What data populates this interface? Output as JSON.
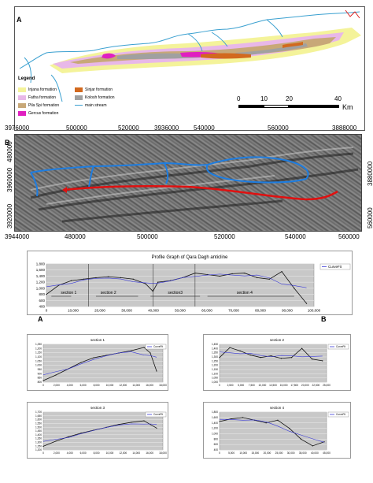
{
  "figure": {
    "panel_a_label": "A",
    "panel_b_label": "B",
    "legend_title": "Legend",
    "legend_items": [
      {
        "label": "Injana formation",
        "color": "#f4f39a"
      },
      {
        "label": "Fatha formation",
        "color": "#e8b8e8"
      },
      {
        "label": "Pila Spi formation",
        "color": "#c8a878"
      },
      {
        "label": "Gercus formation",
        "color": "#e020c0"
      },
      {
        "label": "Sinjar formation",
        "color": "#d2691e"
      },
      {
        "label": "Kolosh formation",
        "color": "#a0a0a0"
      },
      {
        "label": "main stream",
        "color": "#3aa0d0"
      }
    ],
    "scale_bar": {
      "ticks": [
        "0",
        "10",
        "20",
        "40"
      ],
      "unit": "Km"
    },
    "coords_top": [
      "3976000",
      "500000",
      "520000",
      "3936000",
      "540000",
      "560000",
      "3888000"
    ],
    "coords_bottom": [
      "3944000",
      "480000",
      "500000",
      "520000",
      "540000",
      "560000"
    ],
    "coords_left": [
      "3960000",
      "480000",
      "3920000"
    ],
    "coords_right": [
      "3880000",
      "560000"
    ],
    "profile": {
      "title": "Profile Graph of Qara Dagh  anticline",
      "legend": "CurveFit",
      "start_label": "A",
      "end_label": "B",
      "sections": [
        "section 1",
        "section 2",
        "section3",
        "section 4"
      ]
    },
    "small_charts": [
      {
        "title": "section 1",
        "legend": "CurveFit"
      },
      {
        "title": "section 2",
        "legend": "CurveFit"
      },
      {
        "title": "section 3",
        "legend": "CurveFit"
      },
      {
        "title": "section 4",
        "legend": "CurveFit"
      }
    ]
  },
  "chart_data": [
    {
      "type": "line",
      "title": "Profile Graph of Qara Dagh  anticline",
      "series": [
        {
          "name": "CurveFit"
        }
      ],
      "x": [
        0,
        5000,
        10000,
        15000,
        20000,
        25000,
        30000,
        35000,
        40000,
        43000,
        45000,
        50000,
        55000,
        60000,
        65000,
        70000,
        75000,
        80000,
        85000,
        90000,
        95000,
        100000,
        105000
      ],
      "y": [
        800,
        1100,
        1250,
        1300,
        1350,
        1380,
        1350,
        1300,
        1150,
        900,
        1200,
        1250,
        1350,
        1500,
        1450,
        1400,
        1480,
        1500,
        1350,
        1300,
        1550,
        1000,
        500
      ],
      "xticks": [
        "0",
        "10,000",
        "20,000",
        "30,000",
        "40,000",
        "50,000",
        "60,000",
        "70,000",
        "80,000",
        "90,000",
        "100,000"
      ],
      "yticks": [
        "1,800",
        "1,600",
        "1,400",
        "1,200",
        "1,000",
        "800",
        "600",
        "400"
      ],
      "xlim": [
        0,
        108000
      ],
      "ylim": [
        400,
        1800
      ],
      "grid": true,
      "legend_position": "top-right"
    },
    {
      "type": "line",
      "title": "section 1",
      "series": [
        {
          "name": "CurveFit"
        }
      ],
      "x": [
        0,
        2000,
        4000,
        6000,
        8000,
        10000,
        12000,
        14000,
        16000,
        17000,
        18000
      ],
      "y": [
        800,
        870,
        950,
        1030,
        1090,
        1120,
        1150,
        1180,
        1220,
        1150,
        920
      ],
      "xticks": [
        "0",
        "2,000",
        "4,000",
        "6,000",
        "8,000",
        "10,000",
        "12,000",
        "14,000",
        "16,000",
        "18,000"
      ],
      "yticks": [
        "1,250",
        "1,200",
        "1,150",
        "1,100",
        "1,050",
        "1,000",
        "950",
        "900",
        "850",
        "800"
      ],
      "xlim": [
        0,
        19000
      ],
      "ylim": [
        780,
        1260
      ],
      "grid": true
    },
    {
      "type": "line",
      "title": "section 2",
      "series": [
        {
          "name": "CurveFit"
        }
      ],
      "x": [
        0,
        2500,
        5000,
        7500,
        10000,
        12500,
        15000,
        17500,
        20000,
        22500,
        25000
      ],
      "y": [
        1300,
        1420,
        1380,
        1330,
        1300,
        1320,
        1290,
        1300,
        1410,
        1280,
        1260
      ],
      "xticks": [
        "0",
        "2,500",
        "5,000",
        "7,500",
        "10,000",
        "12,500",
        "15,000",
        "17,500",
        "20,000",
        "22,500",
        "25,000"
      ],
      "yticks": [
        "1,450",
        "1,400",
        "1,350",
        "1,300",
        "1,250",
        "1,200",
        "1,150",
        "1,100",
        "1,050",
        "1,000"
      ],
      "xlim": [
        0,
        26000
      ],
      "ylim": [
        1000,
        1460
      ],
      "grid": true
    },
    {
      "type": "line",
      "title": "section 3",
      "series": [
        {
          "name": "CurveFit"
        }
      ],
      "x": [
        0,
        2000,
        4000,
        6000,
        8000,
        10000,
        12000,
        14000,
        16000,
        17000,
        18000
      ],
      "y": [
        1250,
        1320,
        1380,
        1430,
        1470,
        1510,
        1550,
        1580,
        1600,
        1550,
        1500
      ],
      "xticks": [
        "0",
        "2,000",
        "4,000",
        "6,000",
        "8,000",
        "10,000",
        "12,000",
        "14,000",
        "16,000",
        "18,000"
      ],
      "yticks": [
        "1,700",
        "1,650",
        "1,600",
        "1,550",
        "1,500",
        "1,450",
        "1,400",
        "1,350",
        "1,300",
        "1,250",
        "1,200"
      ],
      "xlim": [
        0,
        19000
      ],
      "ylim": [
        1200,
        1720
      ],
      "grid": true
    },
    {
      "type": "line",
      "title": "section 4",
      "series": [
        {
          "name": "CurveFit"
        }
      ],
      "x": [
        0,
        5000,
        10000,
        15000,
        20000,
        25000,
        30000,
        35000,
        40000,
        45000
      ],
      "y": [
        1450,
        1550,
        1600,
        1500,
        1400,
        1500,
        1200,
        800,
        550,
        700
      ],
      "xticks": [
        "0",
        "5,000",
        "10,000",
        "15,000",
        "20,000",
        "25,000",
        "30,000",
        "35,000",
        "40,000",
        "45,000"
      ],
      "yticks": [
        "1,800",
        "1,600",
        "1,400",
        "1,200",
        "1,000",
        "800",
        "600",
        "400"
      ],
      "xlim": [
        0,
        46000
      ],
      "ylim": [
        400,
        1800
      ],
      "grid": true
    }
  ]
}
